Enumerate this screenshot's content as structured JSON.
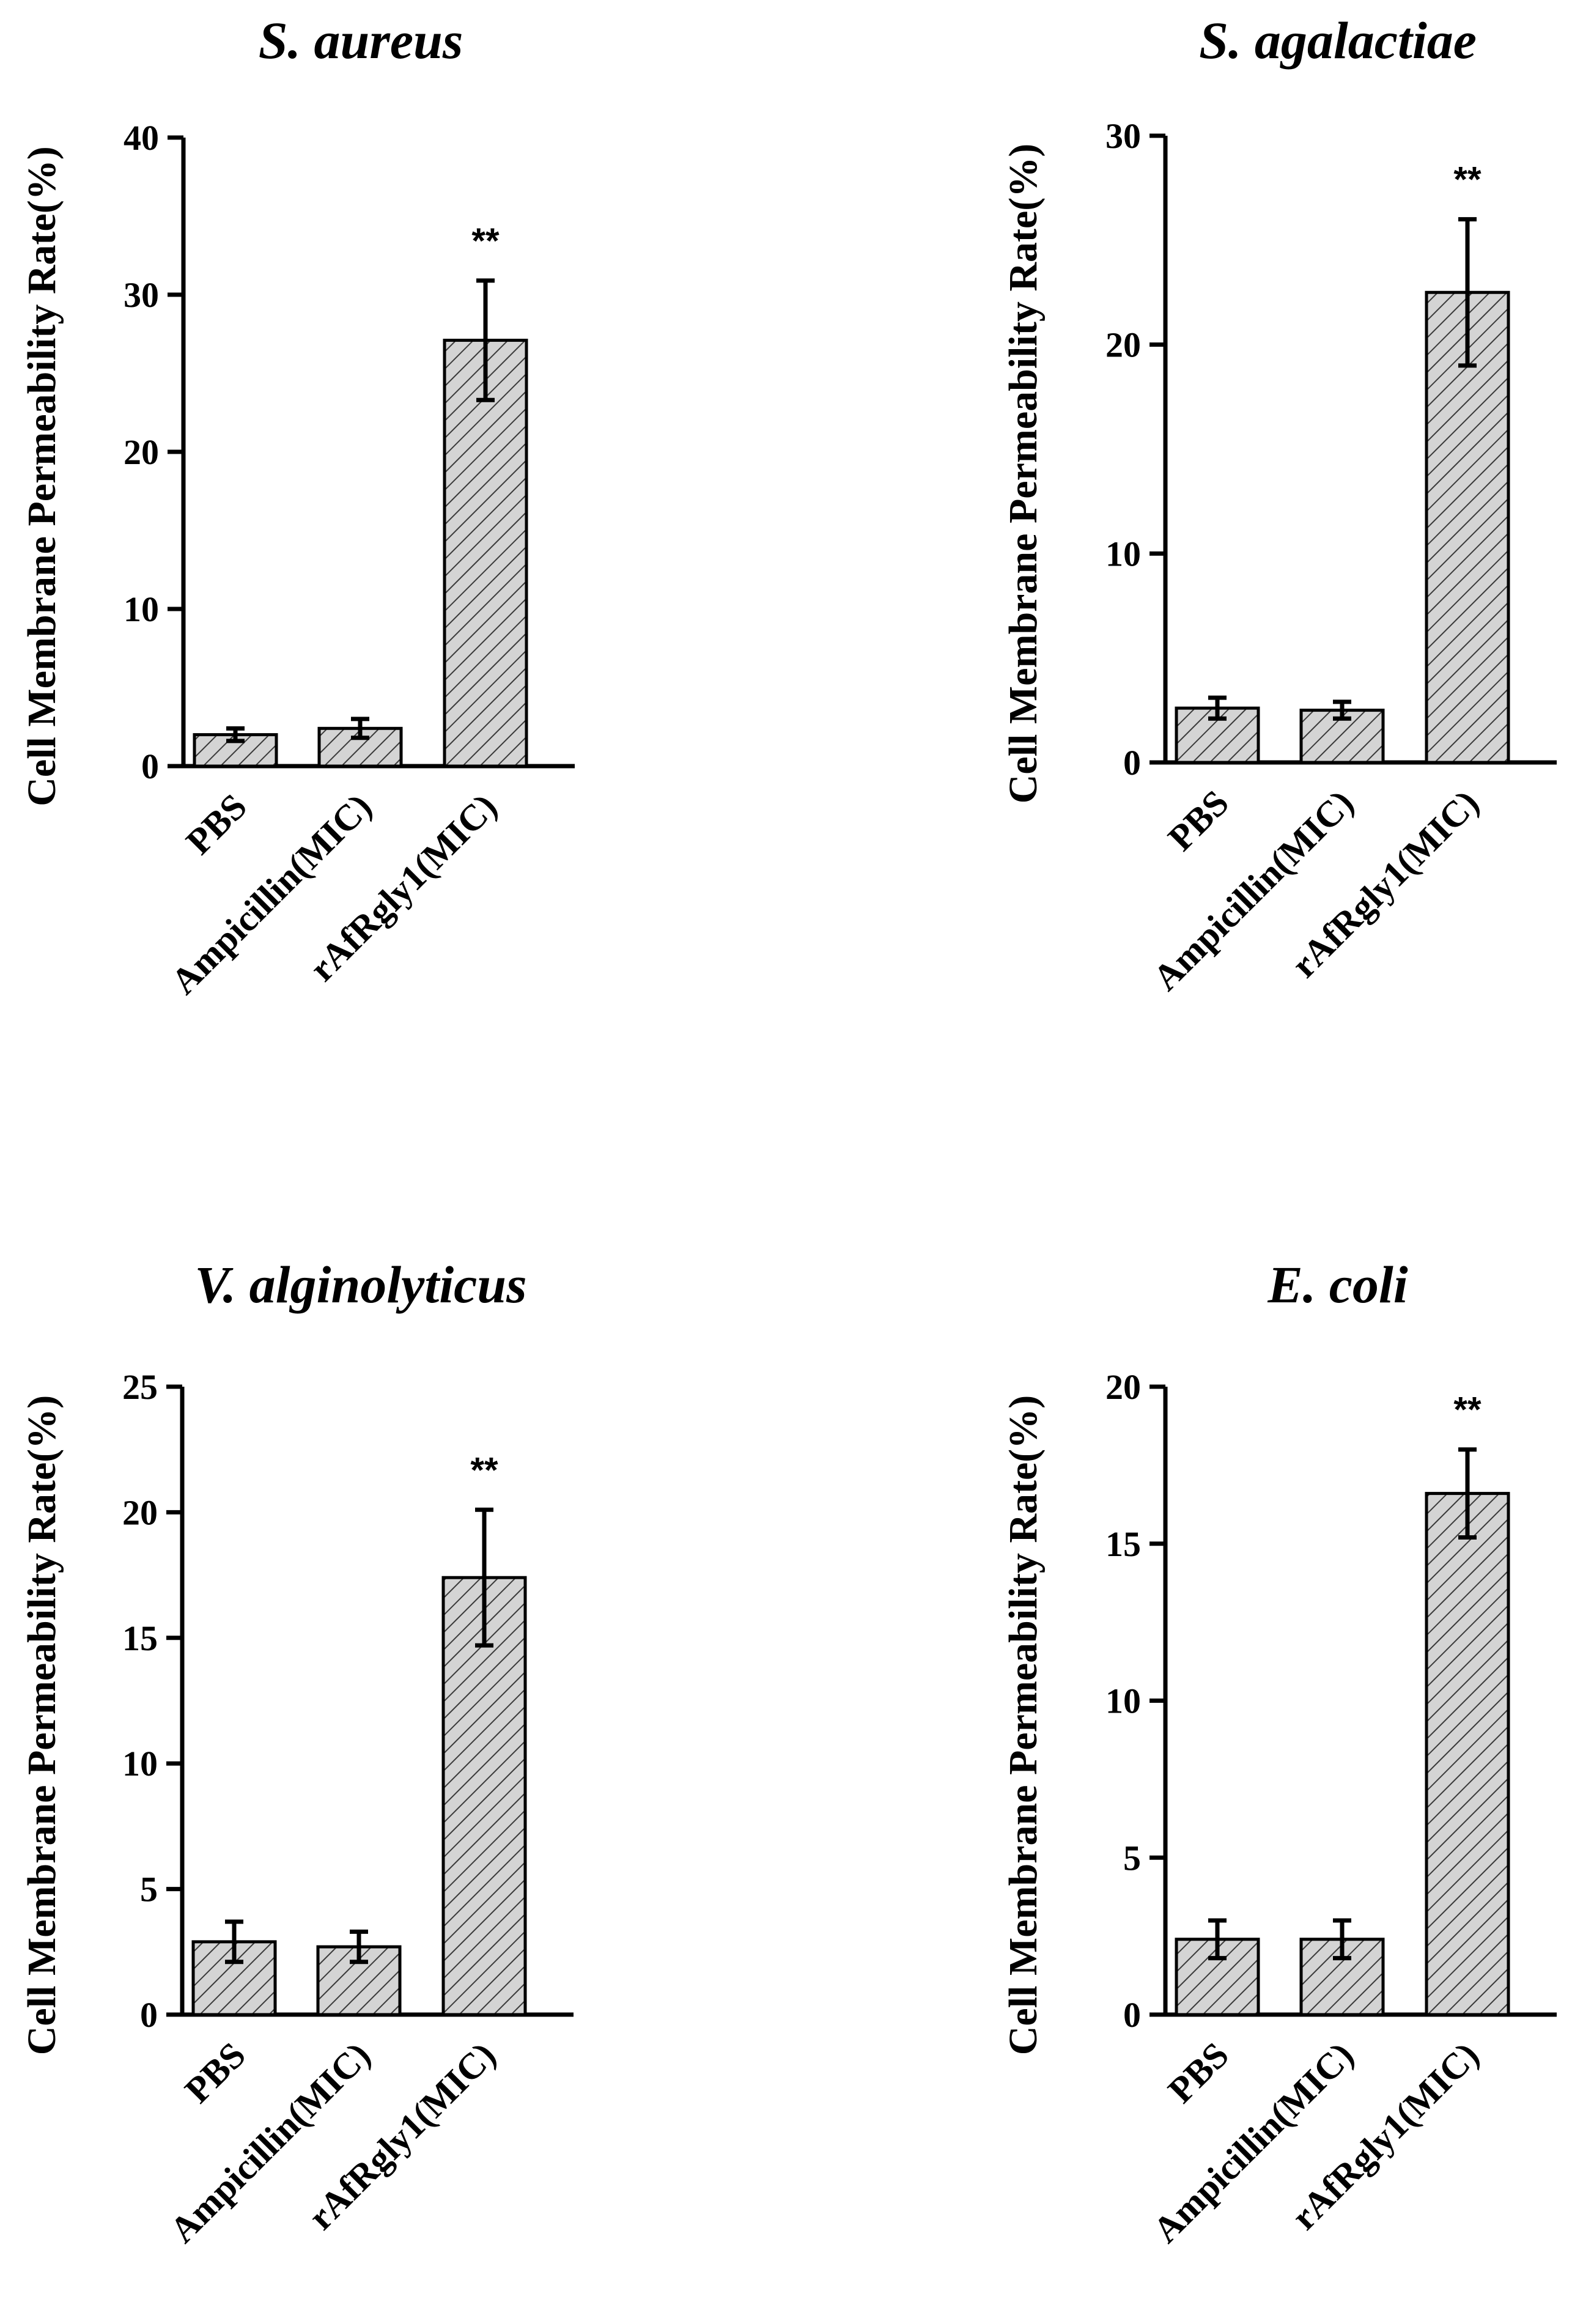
{
  "chart_data": [
    {
      "type": "bar",
      "title": "S. aureus",
      "ylabel": "Cell Membrane Permeability Rate(%)",
      "categories": [
        "PBS",
        "Ampicillin(MIC)",
        "rAfRgly1(MIC)"
      ],
      "values": [
        2.0,
        2.4,
        27.1
      ],
      "errors": [
        0.4,
        0.6,
        3.8
      ],
      "significance": [
        "",
        "",
        "**"
      ],
      "ylim": [
        0,
        40
      ],
      "yticks": [
        0,
        10,
        20,
        30,
        40
      ],
      "fill": "hatched light gray",
      "grid": false
    },
    {
      "type": "bar",
      "title": "S. agalactiae",
      "ylabel": "Cell Membrane Permeability Rate(%)",
      "categories": [
        "PBS",
        "Ampicillin(MIC)",
        "rAfRgly1(MIC)"
      ],
      "values": [
        2.6,
        2.5,
        22.5
      ],
      "errors": [
        0.5,
        0.4,
        3.5
      ],
      "significance": [
        "",
        "",
        "**"
      ],
      "ylim": [
        0,
        30
      ],
      "yticks": [
        0,
        10,
        20,
        30
      ],
      "fill": "hatched light gray",
      "grid": false
    },
    {
      "type": "bar",
      "title": "V. alginolyticus",
      "ylabel": "Cell Membrane Permeability Rate(%)",
      "categories": [
        "PBS",
        "Ampicillin(MIC)",
        "rAfRgly1(MIC)"
      ],
      "values": [
        2.9,
        2.7,
        17.4
      ],
      "errors": [
        0.8,
        0.6,
        2.7
      ],
      "significance": [
        "",
        "",
        "**"
      ],
      "ylim": [
        0,
        25
      ],
      "yticks": [
        0,
        5,
        10,
        15,
        20,
        25
      ],
      "fill": "hatched light gray",
      "grid": false
    },
    {
      "type": "bar",
      "title": "E. coli",
      "ylabel": "Cell Membrane Permeability Rate(%)",
      "categories": [
        "PBS",
        "Ampicillin(MIC)",
        "rAfRgly1(MIC)"
      ],
      "values": [
        2.4,
        2.4,
        16.6
      ],
      "errors": [
        0.6,
        0.6,
        1.4
      ],
      "significance": [
        "",
        "",
        "**"
      ],
      "ylim": [
        0,
        20
      ],
      "yticks": [
        0,
        5,
        10,
        15,
        20
      ],
      "fill": "hatched light gray",
      "grid": false
    }
  ],
  "colors": {
    "bar_fill": "#d4d4d4",
    "hatch": "#3a3a3a",
    "axis": "#000000"
  }
}
